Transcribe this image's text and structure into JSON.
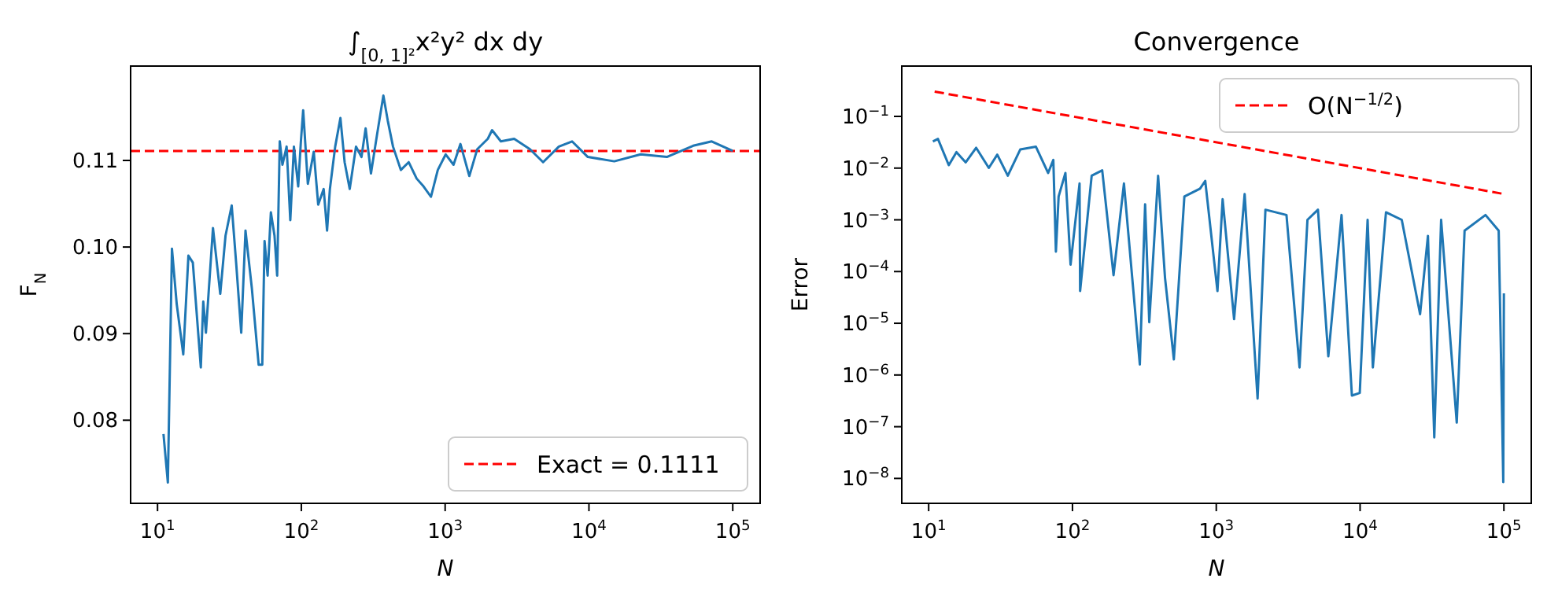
{
  "chart_data": [
    {
      "type": "line",
      "title": "∫$_{[0, 1]²}$x²y² dx dy",
      "xlabel": "N",
      "ylabel": "F$_{N}$",
      "log": "x",
      "grid": false,
      "legend": "bottom right",
      "xlim": [
        6.5,
        155000
      ],
      "ylim": [
        0.0704,
        0.1209
      ],
      "xticks": [
        {
          "value": 10,
          "label": "10$^{1}$"
        },
        {
          "value": 100,
          "label": "10$^{2}$"
        },
        {
          "value": 1000,
          "label": "10$^{3}$"
        },
        {
          "value": 10000,
          "label": "10$^{4}$"
        },
        {
          "value": 100000,
          "label": "10$^{5}$"
        }
      ],
      "yticks": [
        0.08,
        0.09,
        {
          "value": 0.1,
          "label": "0.10"
        },
        0.11
      ],
      "ref_lines": [
        {
          "axis": "y",
          "value": 0.1111,
          "label": "Exact = 0.1111",
          "color": "#ff0000",
          "line_style": "dashed"
        }
      ],
      "series": [
        {
          "color": "#1f77b4",
          "x": [
            11,
            11.8,
            12.6,
            13.6,
            15.1,
            16.4,
            17.6,
            20,
            20.8,
            21.7,
            24.3,
            27.3,
            29.7,
            32.8,
            35.2,
            38.2,
            40.9,
            45.3,
            50.5,
            53.5,
            55.5,
            58.3,
            61.4,
            65.1,
            67.9,
            70.8,
            73.9,
            79,
            83.8,
            88.8,
            95.1,
            99.3,
            103,
            111,
            122,
            131,
            143,
            151,
            158,
            172,
            187,
            200,
            217,
            240,
            262,
            280,
            305,
            337,
            372,
            399,
            434,
            492,
            558,
            634,
            708,
            797,
            889,
            1009,
            1144,
            1278,
            1473,
            1672,
            1980,
            2120,
            2440,
            3020,
            3890,
            4800,
            6180,
            7630,
            9820,
            15000,
            22900,
            34800,
            53100,
            71400,
            100000
          ],
          "values": [
            0.0784,
            0.0728,
            0.0998,
            0.0934,
            0.0876,
            0.099,
            0.0982,
            0.0861,
            0.0937,
            0.0901,
            0.1022,
            0.0946,
            0.1013,
            0.1048,
            0.0982,
            0.0901,
            0.1019,
            0.0952,
            0.0864,
            0.0864,
            0.1007,
            0.0967,
            0.104,
            0.1013,
            0.0967,
            0.1122,
            0.1095,
            0.1116,
            0.1031,
            0.1116,
            0.107,
            0.1122,
            0.1158,
            0.1073,
            0.111,
            0.1049,
            0.1067,
            0.1019,
            0.1067,
            0.1116,
            0.1149,
            0.1098,
            0.1067,
            0.1116,
            0.1104,
            0.1137,
            0.1085,
            0.1131,
            0.1175,
            0.1146,
            0.1116,
            0.1089,
            0.1098,
            0.1079,
            0.107,
            0.1058,
            0.1089,
            0.1107,
            0.1095,
            0.1119,
            0.1082,
            0.1113,
            0.1125,
            0.1135,
            0.1122,
            0.1125,
            0.1113,
            0.1098,
            0.1116,
            0.1122,
            0.1104,
            0.1099,
            0.1107,
            0.1104,
            0.1117,
            0.1122,
            0.1111
          ]
        }
      ]
    },
    {
      "type": "line",
      "title": "Convergence",
      "xlabel": "N",
      "ylabel": "Error",
      "log": "xy",
      "grid": false,
      "legend": "top right",
      "xlim": [
        6.5,
        155000
      ],
      "ylim": [
        3.3e-09,
        0.94
      ],
      "xticks": [
        {
          "value": 10,
          "label": "10$^{1}$"
        },
        {
          "value": 100,
          "label": "10$^{2}$"
        },
        {
          "value": 1000,
          "label": "10$^{3}$"
        },
        {
          "value": 10000,
          "label": "10$^{4}$"
        },
        {
          "value": 100000,
          "label": "10$^{5}$"
        }
      ],
      "yticks": [
        {
          "value": 0.1,
          "label": "10$^{−1}$"
        },
        {
          "value": 0.01,
          "label": "10$^{−2}$"
        },
        {
          "value": 0.001,
          "label": "10$^{−3}$"
        },
        {
          "value": 0.0001,
          "label": "10$^{−4}$"
        },
        {
          "value": 1e-05,
          "label": "10$^{−5}$"
        },
        {
          "value": 1e-06,
          "label": "10$^{−6}$"
        },
        {
          "value": 1e-07,
          "label": "10$^{−7}$"
        },
        {
          "value": 1e-08,
          "label": "10$^{−8}$"
        }
      ],
      "series": [
        {
          "color": "#1f77b4",
          "x": [
            10.7,
            11.6,
            13.8,
            15.6,
            18.1,
            21.4,
            26.2,
            30,
            35.5,
            43.4,
            55.7,
            67.7,
            73.6,
            76.7,
            80.1,
            89.3,
            97,
            112,
            113,
            136,
            161,
            193,
            228,
            294,
            320,
            342,
            394,
            440,
            507,
            600,
            771,
            838,
            1019,
            1107,
            1330,
            1575,
            1938,
            2197,
            3077,
            3793,
            4305,
            5093,
            6013,
            7430,
            8770,
            9950,
            11280,
            12270,
            15140,
            19490,
            26140,
            29640,
            32800,
            36600,
            47000,
            53300,
            74500,
            92000,
            97400,
            99000,
            100000
          ],
          "values": [
            0.0327,
            0.0367,
            0.0114,
            0.0204,
            0.0129,
            0.0247,
            0.0101,
            0.0182,
            0.00714,
            0.023,
            0.0259,
            0.00805,
            0.0144,
            0.000243,
            0.00282,
            0.00805,
            0.000136,
            0.00504,
            4.2e-05,
            0.00714,
            0.00906,
            8.5e-05,
            0.00504,
            1.6e-06,
            0.002,
            1.05e-05,
            0.00714,
            7.6e-05,
            2e-06,
            0.00282,
            0.004,
            0.00567,
            4.2e-05,
            0.0025,
            1.2e-05,
            0.00316,
            3.5e-07,
            0.00157,
            0.00124,
            1.4e-06,
            0.001,
            0.00157,
            2.3e-06,
            0.00124,
            4e-07,
            4.5e-07,
            0.001,
            1.4e-06,
            0.0014,
            0.001,
            1.5e-05,
            0.00049,
            6.2e-08,
            0.001,
            1.2e-07,
            0.00062,
            0.00124,
            0.00062,
            1.1e-07,
            8.5e-09,
            3.8e-05
          ]
        },
        {
          "name": "O(N$^{−1/2}$)",
          "color": "#ff0000",
          "line_style": "dashed",
          "x": [
            11,
            100000
          ],
          "values": [
            0.3015,
            0.00316
          ]
        }
      ]
    }
  ]
}
